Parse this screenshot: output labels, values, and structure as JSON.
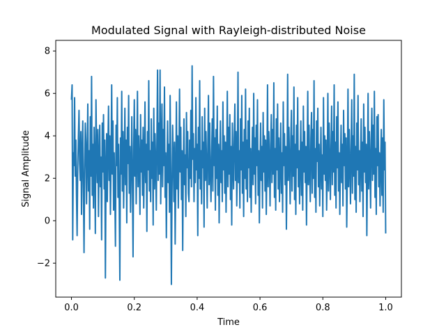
{
  "chart_data": {
    "type": "line",
    "title": "Modulated Signal with Rayleigh-distributed Noise",
    "xlabel": "Time",
    "ylabel": "Signal Amplitude",
    "xlim": [
      -0.05,
      1.05
    ],
    "ylim": [
      -3.6,
      8.5
    ],
    "xticks": [
      0.0,
      0.2,
      0.4,
      0.6,
      0.8,
      1.0
    ],
    "xtick_labels": [
      "0.0",
      "0.2",
      "0.4",
      "0.6",
      "0.8",
      "1.0"
    ],
    "yticks": [
      -2,
      0,
      2,
      4,
      6,
      8
    ],
    "ytick_labels": [
      "−2",
      "0",
      "2",
      "4",
      "6",
      "8"
    ],
    "grid": false,
    "legend": "none",
    "series": [
      {
        "color": "#1f77b4",
        "x": [
          0.0,
          0.002,
          0.004,
          0.006,
          0.008,
          0.01,
          0.012,
          0.014,
          0.016,
          0.018,
          0.02,
          0.022,
          0.024,
          0.026,
          0.028,
          0.03,
          0.032,
          0.034,
          0.036,
          0.038,
          0.04,
          0.042,
          0.044,
          0.046,
          0.048,
          0.05,
          0.052,
          0.054,
          0.056,
          0.058,
          0.06,
          0.062,
          0.064,
          0.066,
          0.068,
          0.07,
          0.072,
          0.074,
          0.076,
          0.078,
          0.08,
          0.082,
          0.084,
          0.086,
          0.088,
          0.09,
          0.092,
          0.094,
          0.096,
          0.098,
          0.1,
          0.102,
          0.104,
          0.106,
          0.108,
          0.11,
          0.112,
          0.114,
          0.116,
          0.118,
          0.12,
          0.122,
          0.124,
          0.126,
          0.128,
          0.13,
          0.132,
          0.134,
          0.136,
          0.138,
          0.14,
          0.142,
          0.144,
          0.146,
          0.148,
          0.15,
          0.152,
          0.154,
          0.156,
          0.158,
          0.16,
          0.162,
          0.164,
          0.166,
          0.168,
          0.17,
          0.172,
          0.174,
          0.176,
          0.178,
          0.18,
          0.182,
          0.184,
          0.186,
          0.188,
          0.19,
          0.192,
          0.194,
          0.196,
          0.198,
          0.2,
          0.202,
          0.204,
          0.206,
          0.208,
          0.21,
          0.212,
          0.214,
          0.216,
          0.218,
          0.22,
          0.222,
          0.224,
          0.226,
          0.228,
          0.23,
          0.232,
          0.234,
          0.236,
          0.238,
          0.24,
          0.242,
          0.244,
          0.246,
          0.248,
          0.25,
          0.252,
          0.254,
          0.256,
          0.258,
          0.26,
          0.262,
          0.264,
          0.266,
          0.268,
          0.27,
          0.272,
          0.274,
          0.276,
          0.278,
          0.28,
          0.282,
          0.284,
          0.286,
          0.288,
          0.29,
          0.292,
          0.294,
          0.296,
          0.298,
          0.3,
          0.302,
          0.304,
          0.306,
          0.308,
          0.31,
          0.312,
          0.314,
          0.316,
          0.318,
          0.32,
          0.322,
          0.324,
          0.326,
          0.328,
          0.33,
          0.332,
          0.334,
          0.336,
          0.338,
          0.34,
          0.342,
          0.344,
          0.346,
          0.348,
          0.35,
          0.352,
          0.354,
          0.356,
          0.358,
          0.36,
          0.362,
          0.364,
          0.366,
          0.368,
          0.37,
          0.372,
          0.374,
          0.376,
          0.378,
          0.38,
          0.382,
          0.384,
          0.386,
          0.388,
          0.39,
          0.392,
          0.394,
          0.396,
          0.398,
          0.4,
          0.402,
          0.404,
          0.406,
          0.408,
          0.41,
          0.412,
          0.414,
          0.416,
          0.418,
          0.42,
          0.422,
          0.424,
          0.426,
          0.428,
          0.43,
          0.432,
          0.434,
          0.436,
          0.438,
          0.44,
          0.442,
          0.444,
          0.446,
          0.448,
          0.45,
          0.452,
          0.454,
          0.456,
          0.458,
          0.46,
          0.462,
          0.464,
          0.466,
          0.468,
          0.47,
          0.472,
          0.474,
          0.476,
          0.478,
          0.48,
          0.482,
          0.484,
          0.486,
          0.488,
          0.49,
          0.492,
          0.494,
          0.496,
          0.498,
          0.5,
          0.502,
          0.504,
          0.506,
          0.508,
          0.51,
          0.512,
          0.514,
          0.516,
          0.518,
          0.52,
          0.522,
          0.524,
          0.526,
          0.528,
          0.53,
          0.532,
          0.534,
          0.536,
          0.538,
          0.54,
          0.542,
          0.544,
          0.546,
          0.548,
          0.55,
          0.552,
          0.554,
          0.556,
          0.558,
          0.56,
          0.562,
          0.564,
          0.566,
          0.568,
          0.57,
          0.572,
          0.574,
          0.576,
          0.578,
          0.58,
          0.582,
          0.584,
          0.586,
          0.588,
          0.59,
          0.592,
          0.594,
          0.596,
          0.598,
          0.6,
          0.602,
          0.604,
          0.606,
          0.608,
          0.61,
          0.612,
          0.614,
          0.616,
          0.618,
          0.62,
          0.622,
          0.624,
          0.626,
          0.628,
          0.63,
          0.632,
          0.634,
          0.636,
          0.638,
          0.64,
          0.642,
          0.644,
          0.646,
          0.648,
          0.65,
          0.652,
          0.654,
          0.656,
          0.658,
          0.66,
          0.662,
          0.664,
          0.666,
          0.668,
          0.67,
          0.672,
          0.674,
          0.676,
          0.678,
          0.68,
          0.682,
          0.684,
          0.686,
          0.688,
          0.69,
          0.692,
          0.694,
          0.696,
          0.698,
          0.7,
          0.702,
          0.704,
          0.706,
          0.708,
          0.71,
          0.712,
          0.714,
          0.716,
          0.718,
          0.72,
          0.722,
          0.724,
          0.726,
          0.728,
          0.73,
          0.732,
          0.734,
          0.736,
          0.738,
          0.74,
          0.742,
          0.744,
          0.746,
          0.748,
          0.75,
          0.752,
          0.754,
          0.756,
          0.758,
          0.76,
          0.762,
          0.764,
          0.766,
          0.768,
          0.77,
          0.772,
          0.774,
          0.776,
          0.778,
          0.78,
          0.782,
          0.784,
          0.786,
          0.788,
          0.79,
          0.792,
          0.794,
          0.796,
          0.798,
          0.8,
          0.802,
          0.804,
          0.806,
          0.808,
          0.81,
          0.812,
          0.814,
          0.816,
          0.818,
          0.82,
          0.822,
          0.824,
          0.826,
          0.828,
          0.83,
          0.832,
          0.834,
          0.836,
          0.838,
          0.84,
          0.842,
          0.844,
          0.846,
          0.848,
          0.85,
          0.852,
          0.854,
          0.856,
          0.858,
          0.86,
          0.862,
          0.864,
          0.866,
          0.868,
          0.87,
          0.872,
          0.874,
          0.876,
          0.878,
          0.88,
          0.882,
          0.884,
          0.886,
          0.888,
          0.89,
          0.892,
          0.894,
          0.896,
          0.898,
          0.9,
          0.902,
          0.904,
          0.906,
          0.908,
          0.91,
          0.912,
          0.914,
          0.916,
          0.918,
          0.92,
          0.922,
          0.924,
          0.926,
          0.928,
          0.93,
          0.932,
          0.934,
          0.936,
          0.938,
          0.94,
          0.942,
          0.944,
          0.946,
          0.948,
          0.95,
          0.952,
          0.954,
          0.956,
          0.958,
          0.96,
          0.962,
          0.964,
          0.966,
          0.968,
          0.97,
          0.972,
          0.974,
          0.976,
          0.978,
          0.98,
          0.982,
          0.984,
          0.986,
          0.988,
          0.99,
          0.992,
          0.994,
          0.996,
          0.998,
          1.0
        ],
        "y": [
          5.7,
          6.4,
          -0.9,
          3.2,
          2.6,
          5.8,
          2.1,
          3.8,
          1.2,
          -0.7,
          2.5,
          3.9,
          5.2,
          2.7,
          1.9,
          4.2,
          0.3,
          3.1,
          4.7,
          1.6,
          -1.5,
          2.2,
          4.6,
          3.7,
          0.8,
          2.9,
          5.5,
          1.4,
          3.3,
          -0.4,
          4.9,
          2.1,
          6.8,
          1.2,
          3.6,
          0.6,
          4.4,
          2.8,
          -0.6,
          5.7,
          3.2,
          1.8,
          4.3,
          0.2,
          2.9,
          4.5,
          1.6,
          3.0,
          -0.9,
          4.6,
          2.3,
          5.0,
          1.5,
          3.8,
          -2.7,
          2.4,
          4.1,
          0.9,
          3.4,
          5.4,
          1.9,
          4.0,
          0.3,
          2.8,
          6.4,
          2.2,
          4.7,
          0.5,
          3.2,
          1.4,
          -1.2,
          4.5,
          2.6,
          5.8,
          1.1,
          3.6,
          0.9,
          -2.8,
          3.9,
          2.2,
          6.1,
          1.4,
          4.2,
          0.6,
          2.9,
          5.3,
          1.7,
          3.8,
          -0.1,
          4.4,
          2.7,
          5.9,
          1.3,
          3.5,
          0.4,
          2.4,
          4.9,
          1.9,
          -1.7,
          3.4,
          5.7,
          2.1,
          4.3,
          0.8,
          3.1,
          6.1,
          1.6,
          4.0,
          2.6,
          0.3,
          5.0,
          2.3,
          3.8,
          1.2,
          4.4,
          0.6,
          2.9,
          5.6,
          1.8,
          3.6,
          -0.5,
          4.2,
          2.4,
          6.6,
          1.4,
          3.3,
          0.9,
          4.8,
          2.0,
          3.7,
          -0.2,
          5.3,
          1.5,
          4.1,
          2.7,
          0.5,
          3.9,
          7.1,
          1.9,
          4.6,
          2.2,
          7.1,
          0.8,
          3.5,
          5.5,
          1.6,
          4.3,
          2.6,
          6.3,
          1.1,
          3.2,
          -0.8,
          2.4,
          4.7,
          1.8,
          3.6,
          0.4,
          5.9,
          2.3,
          -3.0,
          1.4,
          4.5,
          2.9,
          0.9,
          3.7,
          -1.1,
          2.1,
          5.6,
          1.5,
          4.0,
          0.6,
          2.8,
          6.2,
          2.3,
          4.4,
          1.0,
          3.3,
          -1.4,
          2.6,
          4.8,
          1.7,
          3.1,
          0.2,
          5.1,
          2.5,
          4.2,
          1.3,
          0.9,
          3.8,
          2.0,
          5.2,
          1.6,
          7.3,
          2.9,
          4.1,
          0.9,
          3.4,
          1.8,
          5.8,
          2.4,
          3.6,
          -0.7,
          4.4,
          2.0,
          6.6,
          1.5,
          3.3,
          0.8,
          4.9,
          2.5,
          3.7,
          -0.3,
          5.3,
          1.9,
          4.2,
          2.6,
          0.6,
          3.5,
          5.9,
          1.7,
          4.6,
          2.3,
          0.9,
          3.0,
          4.8,
          1.4,
          6.8,
          2.6,
          3.9,
          0.5,
          4.3,
          2.0,
          5.4,
          1.2,
          3.6,
          -0.1,
          2.8,
          4.7,
          1.8,
          3.3,
          0.9,
          5.6,
          2.4,
          4.0,
          1.3,
          3.7,
          0.4,
          2.9,
          6.1,
          1.6,
          4.4,
          2.2,
          5.0,
          1.0,
          3.5,
          -0.2,
          4.6,
          2.7,
          1.5,
          3.9,
          5.5,
          1.9,
          4.2,
          0.7,
          2.6,
          7.0,
          1.8,
          3.3,
          0.6,
          4.8,
          2.4,
          5.9,
          1.3,
          3.7,
          0.2,
          4.3,
          2.0,
          6.2,
          1.5,
          3.8,
          0.9,
          4.7,
          2.5,
          5.3,
          1.1,
          3.4,
          0.4,
          2.8,
          4.4,
          1.7,
          6.0,
          2.2,
          3.9,
          0.8,
          4.5,
          2.6,
          5.7,
          1.2,
          3.3,
          -0.1,
          2.7,
          4.6,
          1.9,
          3.5,
          0.6,
          5.1,
          2.3,
          4.0,
          1.4,
          3.8,
          0.3,
          2.5,
          6.4,
          1.6,
          4.2,
          2.9,
          0.7,
          3.6,
          5.0,
          1.8,
          4.3,
          2.2,
          6.5,
          1.1,
          3.4,
          0.5,
          4.8,
          2.4,
          5.5,
          1.5,
          3.9,
          0.9,
          2.8,
          4.6,
          1.3,
          3.2,
          0.4,
          5.6,
          2.6,
          4.1,
          1.7,
          3.5,
          -0.4,
          2.3,
          6.9,
          1.9,
          4.4,
          2.7,
          0.8,
          3.8,
          5.2,
          1.4,
          4.0,
          2.1,
          6.3,
          1.0,
          3.6,
          0.3,
          4.5,
          2.5,
          5.8,
          1.6,
          3.3,
          0.8,
          2.9,
          4.7,
          1.2,
          3.7,
          0.5,
          5.4,
          2.3,
          4.2,
          1.8,
          3.5,
          -0.2,
          2.7,
          6.1,
          1.7,
          4.5,
          2.4,
          0.9,
          3.9,
          5.1,
          1.3,
          4.3,
          2.0,
          6.6,
          1.1,
          3.4,
          0.4,
          4.7,
          2.8,
          5.3,
          1.6,
          3.6,
          0.7,
          2.6,
          4.4,
          1.5,
          3.1,
          0.2,
          5.8,
          2.2,
          4.0,
          1.9,
          3.8,
          0.5,
          2.4,
          6.0,
          1.4,
          4.6,
          2.9,
          1.0,
          3.5,
          5.4,
          1.7,
          4.2,
          2.3,
          6.4,
          1.2,
          3.7,
          0.6,
          4.9,
          2.5,
          5.6,
          1.4,
          3.2,
          0.3,
          2.8,
          4.5,
          1.8,
          3.6,
          0.7,
          5.2,
          2.6,
          4.1,
          1.5,
          3.9,
          -0.3,
          2.2,
          6.2,
          1.6,
          4.3,
          2.7,
          0.8,
          3.4,
          5.7,
          1.3,
          4.0,
          2.1,
          6.9,
          1.0,
          3.5,
          0.4,
          4.6,
          2.4,
          5.9,
          1.7,
          3.3,
          0.9,
          2.9,
          4.8,
          1.4,
          3.7,
          0.2,
          5.5,
          2.3,
          4.4,
          1.8,
          3.6,
          -0.7,
          2.5,
          6.0,
          1.5,
          4.2,
          2.8,
          0.6,
          3.8,
          5.3,
          1.9,
          4.5,
          2.2,
          6.1,
          1.1,
          3.4,
          0.3,
          4.9,
          2.6,
          5.0,
          1.6,
          3.2,
          0.7,
          2.7,
          4.3,
          1.2,
          3.9,
          0.4,
          5.7,
          2.4,
          3.7,
          -0.6
        ],
        "note_style": "solid line"
      }
    ]
  }
}
